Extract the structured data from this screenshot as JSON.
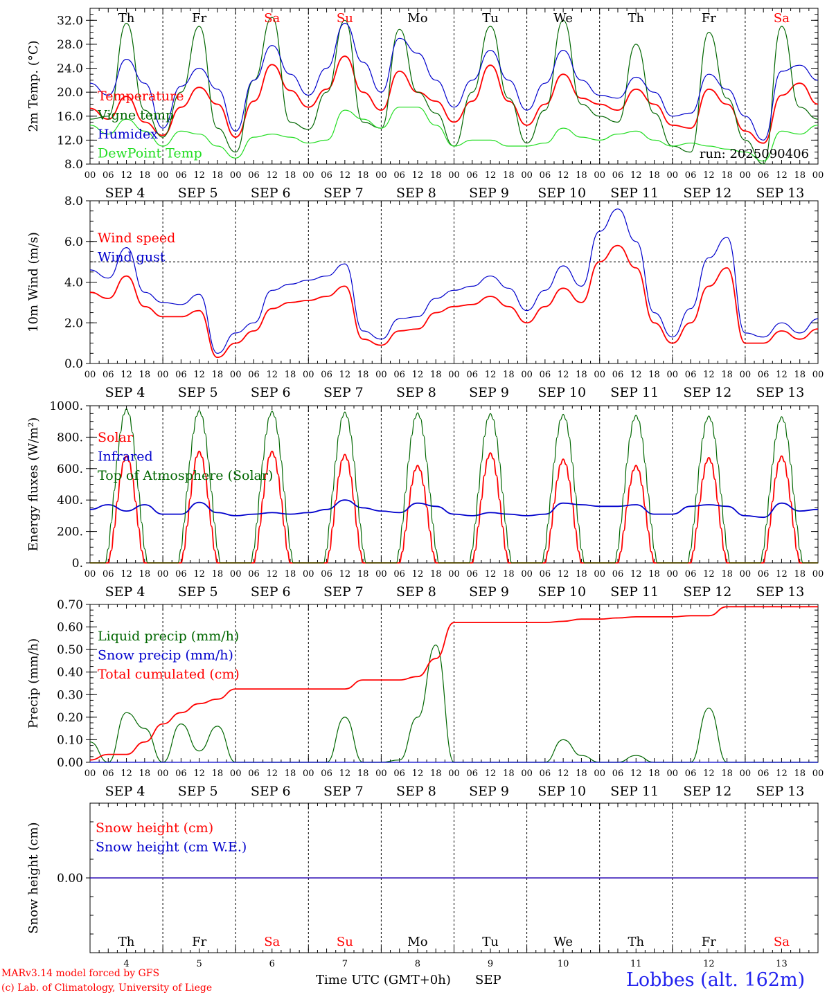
{
  "colors": {
    "red": "#ff0000",
    "blue": "#0000cc",
    "green": "#006600",
    "lightgreen": "#22dd22",
    "axis": "#000000"
  },
  "days": [
    "Th",
    "Fr",
    "Sa",
    "Su",
    "Mo",
    "Tu",
    "We",
    "Th",
    "Fr",
    "Sa"
  ],
  "day_colors": [
    "#000000",
    "#000000",
    "#ff0000",
    "#ff0000",
    "#000000",
    "#000000",
    "#000000",
    "#000000",
    "#000000",
    "#ff0000"
  ],
  "date_labels": [
    "SEP  4",
    "SEP  5",
    "SEP  6",
    "SEP  7",
    "SEP  8",
    "SEP  9",
    "SEP 10",
    "SEP 11",
    "SEP 12",
    "SEP 13"
  ],
  "hour_labels": [
    "00",
    "06",
    "12",
    "18"
  ],
  "hour_label_end": "00",
  "bottom_day_numbers": [
    "4",
    "5",
    "6",
    "7",
    "8",
    "9",
    "10",
    "11",
    "12",
    "13"
  ],
  "footer": {
    "model": "MARv3.14 model forced by GFS",
    "lab": "(c) Lab. of Climatology, University of Liege",
    "xlabel": "Time UTC (GMT+0h)",
    "month": "SEP",
    "station": "Lobbes (alt. 162m)"
  },
  "chart_data": [
    {
      "type": "line",
      "ylabel": "2m Temp. (°C)",
      "ylim": [
        8,
        34
      ],
      "yticks": [
        "8.0",
        "12.0",
        "16.0",
        "20.0",
        "24.0",
        "28.0",
        "32.0"
      ],
      "ytick_values": [
        8,
        12,
        16,
        20,
        24,
        28,
        32
      ],
      "annotation": "run: 2025090406",
      "x_hours": [
        0,
        6,
        12,
        18,
        24,
        30,
        36,
        42,
        48,
        54,
        60,
        66,
        72,
        78,
        84,
        90,
        96,
        102,
        108,
        114,
        120,
        126,
        132,
        138,
        144,
        150,
        156,
        162,
        168,
        174,
        180,
        186,
        192,
        198,
        204,
        210,
        216,
        222,
        228,
        234,
        240
      ],
      "series": [
        {
          "name": "Temperature",
          "color": "#ff0000",
          "values": [
            17.3,
            15.5,
            19.3,
            15.0,
            12.8,
            17.5,
            20.8,
            18.0,
            12.5,
            18.5,
            24.6,
            20.3,
            17.5,
            20.5,
            26.0,
            20.0,
            17.0,
            23.5,
            20.0,
            18.5,
            15.0,
            18.5,
            24.5,
            18.5,
            14.5,
            18.0,
            23.0,
            19.0,
            18.0,
            17.0,
            20.5,
            18.0,
            14.5,
            14.0,
            20.5,
            18.0,
            13.5,
            11.5,
            19.5,
            21.5,
            18.0
          ]
        },
        {
          "name": "Vigne temp",
          "color": "#006600",
          "values": [
            15.5,
            16.0,
            31.5,
            17.0,
            12.5,
            20.0,
            31.0,
            14.0,
            10.0,
            22.0,
            32.5,
            15.0,
            13.8,
            20.0,
            32.0,
            15.0,
            14.0,
            30.5,
            20.0,
            16.5,
            11.0,
            20.0,
            31.0,
            19.0,
            11.5,
            17.0,
            32.0,
            18.0,
            16.0,
            15.0,
            28.0,
            16.5,
            11.0,
            10.0,
            30.0,
            19.0,
            12.0,
            8.0,
            31.0,
            17.5,
            15.5
          ]
        },
        {
          "name": "Humidex",
          "color": "#0000cc",
          "values": [
            21.5,
            19.5,
            25.5,
            21.5,
            14.0,
            21.0,
            24.0,
            20.5,
            13.5,
            22.0,
            27.8,
            23.0,
            19.5,
            24.0,
            31.5,
            25.0,
            20.0,
            29.0,
            26.5,
            22.0,
            17.5,
            22.0,
            27.0,
            22.0,
            17.0,
            21.5,
            27.0,
            22.0,
            19.5,
            19.0,
            22.5,
            20.0,
            16.0,
            16.5,
            23.0,
            20.5,
            16.0,
            12.0,
            23.5,
            24.5,
            22.0
          ]
        },
        {
          "name": "DewPoint Temp",
          "color": "#22dd22",
          "values": [
            14.5,
            13.0,
            15.5,
            13.5,
            11.0,
            13.5,
            13.0,
            11.0,
            9.0,
            12.5,
            13.0,
            12.5,
            11.5,
            12.0,
            17.0,
            15.5,
            14.0,
            17.5,
            17.5,
            14.5,
            11.0,
            12.0,
            12.0,
            11.0,
            11.0,
            11.5,
            14.0,
            12.5,
            12.0,
            13.0,
            13.5,
            12.0,
            11.0,
            11.5,
            11.0,
            10.5,
            10.0,
            8.5,
            13.5,
            13.0,
            14.5
          ]
        }
      ]
    },
    {
      "type": "line",
      "ylabel": "10m Wind (m/s)",
      "ylim": [
        0,
        8
      ],
      "yticks": [
        "0.0",
        "2.0",
        "4.0",
        "6.0",
        "8.0"
      ],
      "ytick_values": [
        0,
        2,
        4,
        6,
        8
      ],
      "reference_line": 5,
      "x_hours": [
        0,
        6,
        12,
        18,
        24,
        30,
        36,
        42,
        48,
        54,
        60,
        66,
        72,
        78,
        84,
        90,
        96,
        102,
        108,
        114,
        120,
        126,
        132,
        138,
        144,
        150,
        156,
        162,
        168,
        174,
        180,
        186,
        192,
        198,
        204,
        210,
        216,
        222,
        228,
        234,
        240
      ],
      "series": [
        {
          "name": "Wind speed",
          "color": "#ff0000",
          "values": [
            3.5,
            3.2,
            4.3,
            2.8,
            2.3,
            2.3,
            2.6,
            0.3,
            1.0,
            1.6,
            2.7,
            3.0,
            3.1,
            3.3,
            3.8,
            1.2,
            0.9,
            1.6,
            1.7,
            2.5,
            2.8,
            2.9,
            3.3,
            2.8,
            2.0,
            2.8,
            3.7,
            3.0,
            5.0,
            5.8,
            4.7,
            2.0,
            1.0,
            2.0,
            3.8,
            4.7,
            1.0,
            1.0,
            1.6,
            1.2,
            1.7
          ]
        },
        {
          "name": "Wind gust",
          "color": "#0000cc",
          "values": [
            4.6,
            4.2,
            5.7,
            3.5,
            3.0,
            2.9,
            3.4,
            0.5,
            1.5,
            2.0,
            3.6,
            3.9,
            4.1,
            4.3,
            4.9,
            1.6,
            1.2,
            2.2,
            2.3,
            3.2,
            3.6,
            3.8,
            4.3,
            3.7,
            2.6,
            3.6,
            4.8,
            3.8,
            6.5,
            7.6,
            6.0,
            2.5,
            1.3,
            2.7,
            5.2,
            6.2,
            1.5,
            1.3,
            2.0,
            1.5,
            2.2
          ]
        }
      ]
    },
    {
      "type": "line",
      "ylabel": "Energy fluxes (W/m²)",
      "ylim": [
        0,
        1000
      ],
      "yticks": [
        "0.",
        "200.",
        "400.",
        "600.",
        "800.",
        "1000."
      ],
      "ytick_values": [
        0,
        200,
        400,
        600,
        800,
        1000
      ],
      "top_of_atmosphere_daily_peak": [
        980,
        970,
        965,
        960,
        955,
        950,
        945,
        940,
        935,
        930
      ],
      "solar_daily_peak": [
        680,
        710,
        710,
        690,
        620,
        700,
        660,
        620,
        670,
        680
      ],
      "x_hours": [
        0,
        6,
        12,
        18,
        24,
        30,
        36,
        42,
        48,
        54,
        60,
        66,
        72,
        78,
        84,
        90,
        96,
        102,
        108,
        114,
        120,
        126,
        132,
        138,
        144,
        150,
        156,
        162,
        168,
        174,
        180,
        186,
        192,
        198,
        204,
        210,
        216,
        222,
        228,
        234,
        240
      ],
      "series": [
        {
          "name": "Solar",
          "color": "#ff0000",
          "values": []
        },
        {
          "name": "Infrared",
          "color": "#0000cc",
          "values": [
            340,
            370,
            330,
            370,
            310,
            310,
            385,
            320,
            300,
            310,
            320,
            310,
            320,
            340,
            400,
            350,
            330,
            320,
            380,
            360,
            310,
            300,
            320,
            310,
            300,
            310,
            380,
            370,
            360,
            360,
            370,
            310,
            310,
            360,
            370,
            360,
            300,
            290,
            380,
            330,
            340
          ]
        },
        {
          "name": "Top of Atmosphere (Solar)",
          "color": "#006600",
          "values": []
        }
      ]
    },
    {
      "type": "line",
      "ylabel": "Precip (mm/h)",
      "ylim": [
        0,
        0.7
      ],
      "yticks": [
        "0.00",
        "0.10",
        "0.20",
        "0.30",
        "0.40",
        "0.50",
        "0.60",
        "0.70"
      ],
      "ytick_values": [
        0,
        0.1,
        0.2,
        0.3,
        0.4,
        0.5,
        0.6,
        0.7
      ],
      "x_hours": [
        0,
        6,
        12,
        18,
        24,
        30,
        36,
        42,
        48,
        54,
        60,
        66,
        72,
        78,
        84,
        90,
        96,
        102,
        108,
        114,
        120,
        126,
        132,
        138,
        144,
        150,
        156,
        162,
        168,
        174,
        180,
        186,
        192,
        198,
        204,
        210,
        216,
        222,
        228,
        234,
        240
      ],
      "series": [
        {
          "name": "Liquid precip (mm/h)",
          "color": "#006600",
          "values": [
            0.09,
            0,
            0.22,
            0.15,
            0,
            0.17,
            0.05,
            0.16,
            0,
            0,
            0,
            0,
            0,
            0,
            0.2,
            0,
            0,
            0.01,
            0.2,
            0.52,
            0,
            0,
            0,
            0,
            0,
            0,
            0.1,
            0.03,
            0,
            0,
            0.03,
            0,
            0,
            0,
            0.24,
            0,
            0,
            0,
            0,
            0,
            0
          ]
        },
        {
          "name": "Snow precip (mm/h)",
          "color": "#0000cc",
          "values": [
            0,
            0,
            0,
            0,
            0,
            0,
            0,
            0,
            0,
            0,
            0,
            0,
            0,
            0,
            0,
            0,
            0,
            0,
            0,
            0,
            0,
            0,
            0,
            0,
            0,
            0,
            0,
            0,
            0,
            0,
            0,
            0,
            0,
            0,
            0,
            0,
            0,
            0,
            0,
            0,
            0
          ]
        },
        {
          "name": "Total cumulated (cm)",
          "color": "#ff0000",
          "values": [
            0.01,
            0.035,
            0.035,
            0.09,
            0.17,
            0.22,
            0.26,
            0.28,
            0.325,
            0.325,
            0.325,
            0.325,
            0.325,
            0.325,
            0.325,
            0.365,
            0.365,
            0.365,
            0.38,
            0.46,
            0.62,
            0.62,
            0.62,
            0.62,
            0.62,
            0.62,
            0.625,
            0.635,
            0.635,
            0.64,
            0.645,
            0.645,
            0.645,
            0.65,
            0.65,
            0.69,
            0.69,
            0.69,
            0.69,
            0.69,
            0.69
          ]
        }
      ]
    },
    {
      "type": "line",
      "ylabel": "Snow height (cm)",
      "ylim": [
        -1,
        1
      ],
      "yticks": [
        "0.00"
      ],
      "ytick_values": [
        0
      ],
      "x_hours": [
        0,
        240
      ],
      "series": [
        {
          "name": "Snow height (cm)",
          "color": "#ff0000",
          "values": [
            0,
            0
          ]
        },
        {
          "name": "Snow height (cm W.E.)",
          "color": "#0000cc",
          "values": [
            0,
            0
          ]
        }
      ]
    }
  ]
}
